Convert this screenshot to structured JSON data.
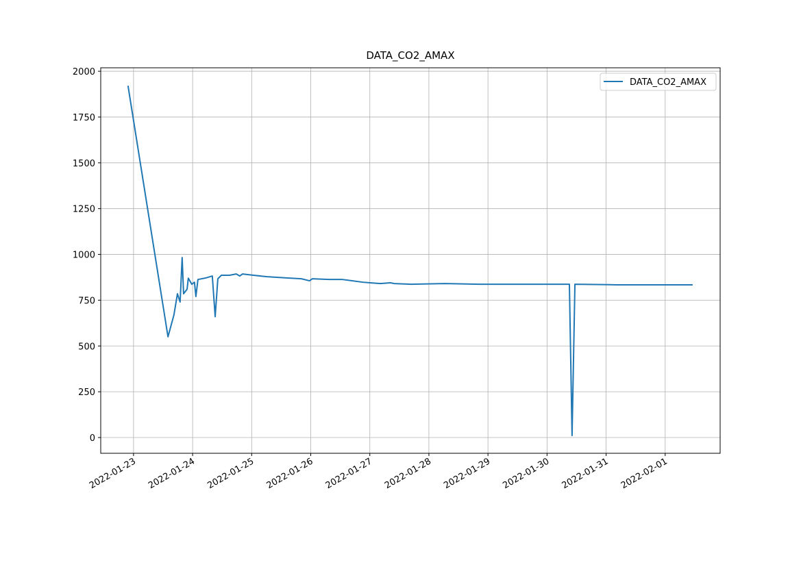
{
  "chart_data": {
    "type": "line",
    "title": "DATA_CO2_AMAX",
    "x": [
      "2022-01-22T21:45",
      "2022-01-23T14:00",
      "2022-01-23T16:25",
      "2022-01-23T17:50",
      "2022-01-23T18:55",
      "2022-01-23T19:45",
      "2022-01-23T20:20",
      "2022-01-23T21:45",
      "2022-01-23T22:15",
      "2022-01-23T23:40",
      "2022-01-24T00:45",
      "2022-01-24T01:20",
      "2022-01-24T02:10",
      "2022-01-24T05:15",
      "2022-01-24T08:00",
      "2022-01-24T09:10",
      "2022-01-24T10:15",
      "2022-01-24T11:40",
      "2022-01-24T15:00",
      "2022-01-24T17:45",
      "2022-01-24T19:10",
      "2022-01-24T20:15",
      "2022-01-25T00:45",
      "2022-01-25T06:20",
      "2022-01-25T14:40",
      "2022-01-25T20:10",
      "2022-01-25T23:30",
      "2022-01-26T00:40",
      "2022-01-26T07:20",
      "2022-01-26T12:55",
      "2022-01-26T21:15",
      "2022-01-27T00:05",
      "2022-01-27T04:15",
      "2022-01-27T08:25",
      "2022-01-27T09:50",
      "2022-01-27T16:45",
      "2022-01-28T06:40",
      "2022-01-28T20:35",
      "2022-01-29T13:20",
      "2022-01-30T09:05",
      "2022-01-30T10:10",
      "2022-01-30T11:20",
      "2022-01-31T04:20",
      "2022-01-31T21:00",
      "2022-02-01T11:10"
    ],
    "series": [
      {
        "name": "DATA_CO2_AMAX",
        "color": "#1f77b4",
        "values": [
          1921,
          550,
          670,
          785,
          740,
          983,
          785,
          810,
          870,
          837,
          848,
          770,
          863,
          871,
          882,
          660,
          867,
          886,
          886,
          893,
          882,
          893,
          886,
          878,
          871,
          867,
          856,
          867,
          863,
          863,
          848,
          845,
          841,
          845,
          841,
          837,
          841,
          837,
          837,
          837,
          11,
          837,
          834,
          834,
          834
        ]
      }
    ],
    "xlim": [
      "2022-01-22T10:40",
      "2022-02-01T22:20"
    ],
    "xticks": [
      "2022-01-23",
      "2022-01-24",
      "2022-01-25",
      "2022-01-26",
      "2022-01-27",
      "2022-01-28",
      "2022-01-29",
      "2022-01-30",
      "2022-01-31",
      "2022-02-01"
    ],
    "ylim": [
      -86,
      2019
    ],
    "yticks": [
      0,
      250,
      500,
      750,
      1000,
      1250,
      1500,
      1750,
      2000
    ],
    "grid": true,
    "legend": "upper right"
  }
}
